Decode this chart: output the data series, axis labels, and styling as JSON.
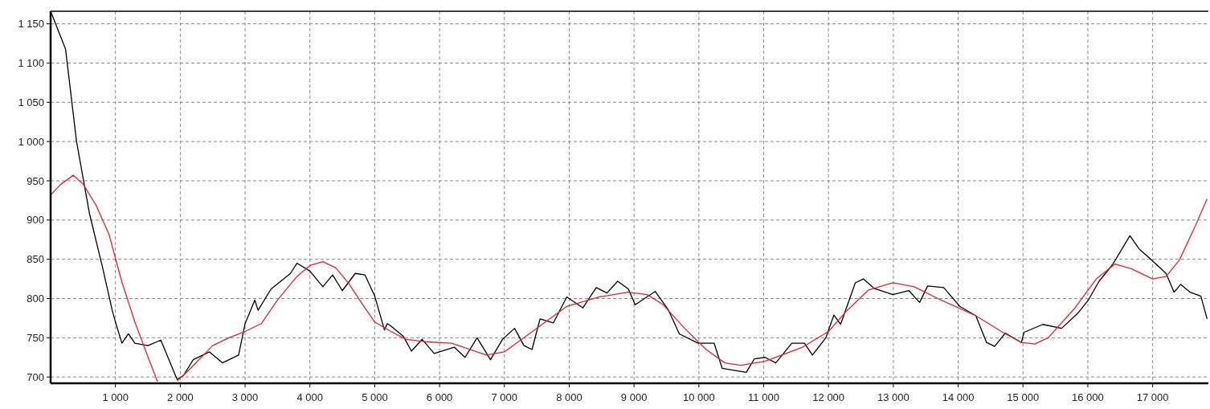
{
  "chart_data": {
    "type": "line",
    "xlim": [
      0,
      17860
    ],
    "ylim": [
      692,
      1166
    ],
    "xticks": [
      {
        "value": 1000,
        "label": "1 000"
      },
      {
        "value": 2000,
        "label": "2 000"
      },
      {
        "value": 3000,
        "label": "3 000"
      },
      {
        "value": 4000,
        "label": "4 000"
      },
      {
        "value": 5000,
        "label": "5 000"
      },
      {
        "value": 6000,
        "label": "6 000"
      },
      {
        "value": 7000,
        "label": "7 000"
      },
      {
        "value": 8000,
        "label": "8 000"
      },
      {
        "value": 9000,
        "label": "9 000"
      },
      {
        "value": 10000,
        "label": "10 000"
      },
      {
        "value": 11000,
        "label": "11 000"
      },
      {
        "value": 12000,
        "label": "12 000"
      },
      {
        "value": 13000,
        "label": "13 000"
      },
      {
        "value": 14000,
        "label": "14 000"
      },
      {
        "value": 15000,
        "label": "15 000"
      },
      {
        "value": 16000,
        "label": "16 000"
      },
      {
        "value": 17000,
        "label": "17 000"
      }
    ],
    "yticks": [
      700,
      750,
      800,
      850,
      900,
      950,
      {
        "value": 1000,
        "label": "1 000"
      },
      {
        "value": 1050,
        "label": "1 050"
      },
      {
        "value": 1100,
        "label": "1 100"
      },
      {
        "value": 1150,
        "label": "1 150"
      }
    ],
    "grid": true,
    "marker": "none",
    "line_style": "solid",
    "series": [
      {
        "color": "#000000",
        "x": [
          0,
          230,
          400,
          600,
          800,
          950,
          1000,
          1100,
          1200,
          1300,
          1500,
          1700,
          1800,
          1950,
          2050,
          2200,
          2450,
          2650,
          2900,
          3000,
          3150,
          3200,
          3400,
          3700,
          3800,
          4000,
          4200,
          4350,
          4500,
          4700,
          4850,
          5000,
          5150,
          5194,
          5250,
          5440,
          5566,
          5731,
          5917,
          6227,
          6393,
          6579,
          6785,
          6971,
          7157,
          7302,
          7426,
          7550,
          7756,
          7963,
          8211,
          8417,
          8583,
          8748,
          8913,
          9017,
          9326,
          9533,
          9698,
          9988,
          10236,
          10360,
          10731,
          10855,
          11021,
          11186,
          11434,
          11628,
          11752,
          11959,
          12083,
          12186,
          12289,
          12413,
          12537,
          12702,
          12992,
          13240,
          13405,
          13529,
          13777,
          14025,
          14273,
          14438,
          14562,
          14727,
          14975,
          15017,
          15306,
          15595,
          15843,
          16008,
          16174,
          16380,
          16504,
          16649,
          16793,
          16959,
          17207,
          17331,
          17434,
          17579,
          17744,
          17840
        ],
        "values": [
          1166,
          1118,
          1000,
          908,
          840,
          785,
          770,
          743,
          755,
          743,
          740,
          747,
          727,
          697,
          702,
          722,
          732,
          718,
          728,
          768,
          798,
          785,
          812,
          832,
          845,
          835,
          815,
          830,
          810,
          832,
          830,
          803,
          760,
          768,
          765,
          752,
          733,
          748,
          730,
          738,
          725,
          750,
          722,
          748,
          762,
          740,
          735,
          774,
          769,
          802,
          788,
          814,
          807,
          822,
          812,
          792,
          809,
          785,
          755,
          743,
          743,
          711,
          706,
          723,
          725,
          718,
          743,
          743,
          728,
          750,
          779,
          767,
          791,
          820,
          825,
          813,
          805,
          810,
          795,
          816,
          814,
          790,
          778,
          744,
          739,
          756,
          744,
          757,
          767,
          762,
          781,
          798,
          822,
          843,
          860,
          880,
          863,
          851,
          832,
          808,
          818,
          808,
          803,
          774
        ]
      },
      {
        "color": "#e8202a",
        "x": [
          0,
          150,
          350,
          500,
          700,
          900,
          1100,
          1300,
          1500,
          1650,
          1800,
          1950,
          2100,
          2300,
          2500,
          2750,
          3000,
          3250,
          3500,
          3800,
          4000,
          4200,
          4400,
          4600,
          4800,
          5000,
          5250,
          5483,
          5773,
          6186,
          6723,
          7000,
          7467,
          7963,
          8459,
          8913,
          9203,
          9450,
          9781,
          10112,
          10401,
          10649,
          11021,
          11600,
          12000,
          12289,
          12620,
          12992,
          13322,
          13736,
          14273,
          14686,
          14975,
          15182,
          15388,
          15802,
          16132,
          16421,
          16669,
          17000,
          17207,
          17413,
          17661,
          17840
        ],
        "values": [
          932,
          945,
          957,
          946,
          919,
          882,
          821,
          770,
          726,
          694,
          null,
          695,
          706,
          723,
          740,
          750,
          758,
          768,
          798,
          828,
          842,
          847,
          839,
          819,
          794,
          770,
          758,
          748,
          745,
          743,
          728,
          732,
          760,
          790,
          802,
          808,
          805,
          792,
          762,
          735,
          718,
          715,
          720,
          738,
          758,
          785,
          811,
          820,
          815,
          798,
          778,
          757,
          744,
          742,
          750,
          788,
          825,
          844,
          838,
          825,
          828,
          849,
          893,
          927
        ]
      }
    ]
  }
}
